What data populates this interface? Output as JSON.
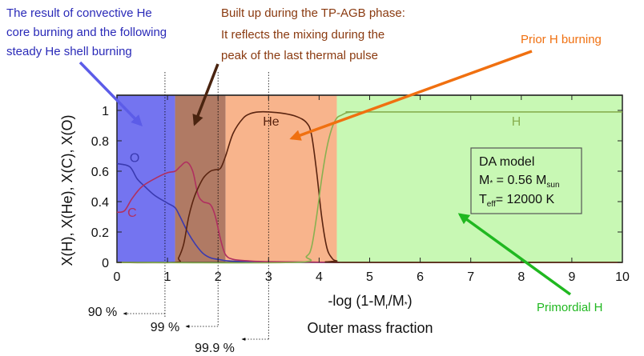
{
  "chart_data": {
    "type": "line",
    "xlabel": "-log (1-Mr/M*)",
    "ylabel": "X(H), X(He), X(C), X(O)",
    "xlim": [
      0,
      10
    ],
    "ylim": [
      0,
      1.1
    ],
    "x_ticks": [
      "0",
      "1",
      "2",
      "3",
      "4",
      "5",
      "6",
      "7",
      "8",
      "9",
      "10"
    ],
    "y_ticks": [
      "0",
      "0.2",
      "0.4",
      "0.6",
      "0.8",
      "1"
    ],
    "regions": [
      {
        "x0": 0.0,
        "x1": 1.15,
        "color": "#7474f0",
        "label": "The result of convective He core burning and the following steady He shell burning"
      },
      {
        "x0": 1.15,
        "x1": 2.15,
        "color": "#b07a64",
        "label": "Built up during the TP-AGB phase: It reflects the mixing during the peak of the last thermal pulse"
      },
      {
        "x0": 2.15,
        "x1": 4.35,
        "color": "#f8b48c",
        "label": "Prior H burning"
      },
      {
        "x0": 4.35,
        "x1": 10.0,
        "color": "#c8f8b4",
        "label": "Primordial H"
      }
    ],
    "series": [
      {
        "name": "O",
        "color": "#3a3ab0",
        "x": [
          0,
          0.25,
          0.4,
          0.55,
          0.75,
          1.0,
          1.15,
          1.25,
          1.4,
          1.55,
          1.7,
          1.85,
          2.0,
          2.2,
          2.6,
          3.2,
          4.4
        ],
        "y": [
          0.65,
          0.63,
          0.55,
          0.5,
          0.44,
          0.39,
          0.36,
          0.3,
          0.2,
          0.12,
          0.06,
          0.03,
          0.02,
          0.01,
          0.005,
          0.003,
          0.0
        ]
      },
      {
        "name": "C",
        "color": "#b03060",
        "x": [
          0,
          0.15,
          0.3,
          0.5,
          0.8,
          1.0,
          1.15,
          1.25,
          1.38,
          1.5,
          1.6,
          1.7,
          1.85,
          1.95,
          2.05,
          2.15,
          2.3,
          2.6,
          3.0,
          4.4
        ],
        "y": [
          0.33,
          0.34,
          0.42,
          0.5,
          0.56,
          0.59,
          0.6,
          0.63,
          0.66,
          0.6,
          0.45,
          0.4,
          0.38,
          0.3,
          0.15,
          0.05,
          0.02,
          0.01,
          0.005,
          0.0
        ]
      },
      {
        "name": "He",
        "color": "#5a2410",
        "x": [
          0,
          1.15,
          1.22,
          1.32,
          1.42,
          1.52,
          1.62,
          1.72,
          1.85,
          1.95,
          2.05,
          2.15,
          2.3,
          2.5,
          2.65,
          2.8,
          3.0,
          3.3,
          3.55,
          3.75,
          3.85,
          3.95,
          4.05,
          4.15,
          4.25,
          4.35,
          4.6,
          10
        ],
        "y": [
          0.0,
          0.0,
          0.03,
          0.12,
          0.3,
          0.42,
          0.5,
          0.56,
          0.6,
          0.61,
          0.62,
          0.7,
          0.85,
          0.95,
          0.98,
          0.99,
          0.99,
          0.98,
          0.96,
          0.92,
          0.84,
          0.6,
          0.3,
          0.1,
          0.03,
          0.01,
          0.0,
          0.0
        ]
      },
      {
        "name": "H",
        "color": "#88b050",
        "x": [
          0,
          3.5,
          3.75,
          3.85,
          3.95,
          4.05,
          4.15,
          4.25,
          4.35,
          4.45,
          4.55,
          4.7,
          5.0,
          10
        ],
        "y": [
          0.0,
          0.0,
          0.04,
          0.1,
          0.3,
          0.55,
          0.75,
          0.88,
          0.95,
          0.97,
          0.985,
          0.99,
          0.99,
          0.99
        ]
      }
    ],
    "top_line_y": 1.1,
    "legend_box": {
      "line1": "DA model",
      "line2": "M* = 0.56 Msun",
      "line3": "Teff= 12000 K"
    },
    "series_labels": [
      {
        "name": "O",
        "x": 0.35,
        "y": 0.66
      },
      {
        "name": "C",
        "x": 0.3,
        "y": 0.3
      },
      {
        "name": "He",
        "x": 3.05,
        "y": 0.9
      },
      {
        "name": "H",
        "x": 7.9,
        "y": 0.9
      }
    ],
    "mass_markers": [
      {
        "label": "90 %",
        "x": 0.95
      },
      {
        "label": "99 %",
        "x": 2.0
      },
      {
        "label": "99.9 %",
        "x": 3.0
      }
    ],
    "annotations": {
      "convective": [
        "The result of convective He",
        "core burning and the following",
        "steady He shell burning"
      ],
      "tpagb": [
        "Built up during the TP-AGB phase:",
        "It reflects the mixing during the",
        "peak of the last thermal pulse"
      ],
      "prior_h": "Prior H burning",
      "primordial_h": "Primordial H",
      "outer_mass": "Outer mass fraction"
    },
    "colors": {
      "convective_text": "#2a2ab8",
      "tpagb_text": "#8a3a10",
      "prior_h": "#f07010",
      "primordial_h": "#20b820",
      "blue_arrow": "#5c5ce8",
      "brown_arrow": "#4a2410"
    },
    "grid": false
  }
}
